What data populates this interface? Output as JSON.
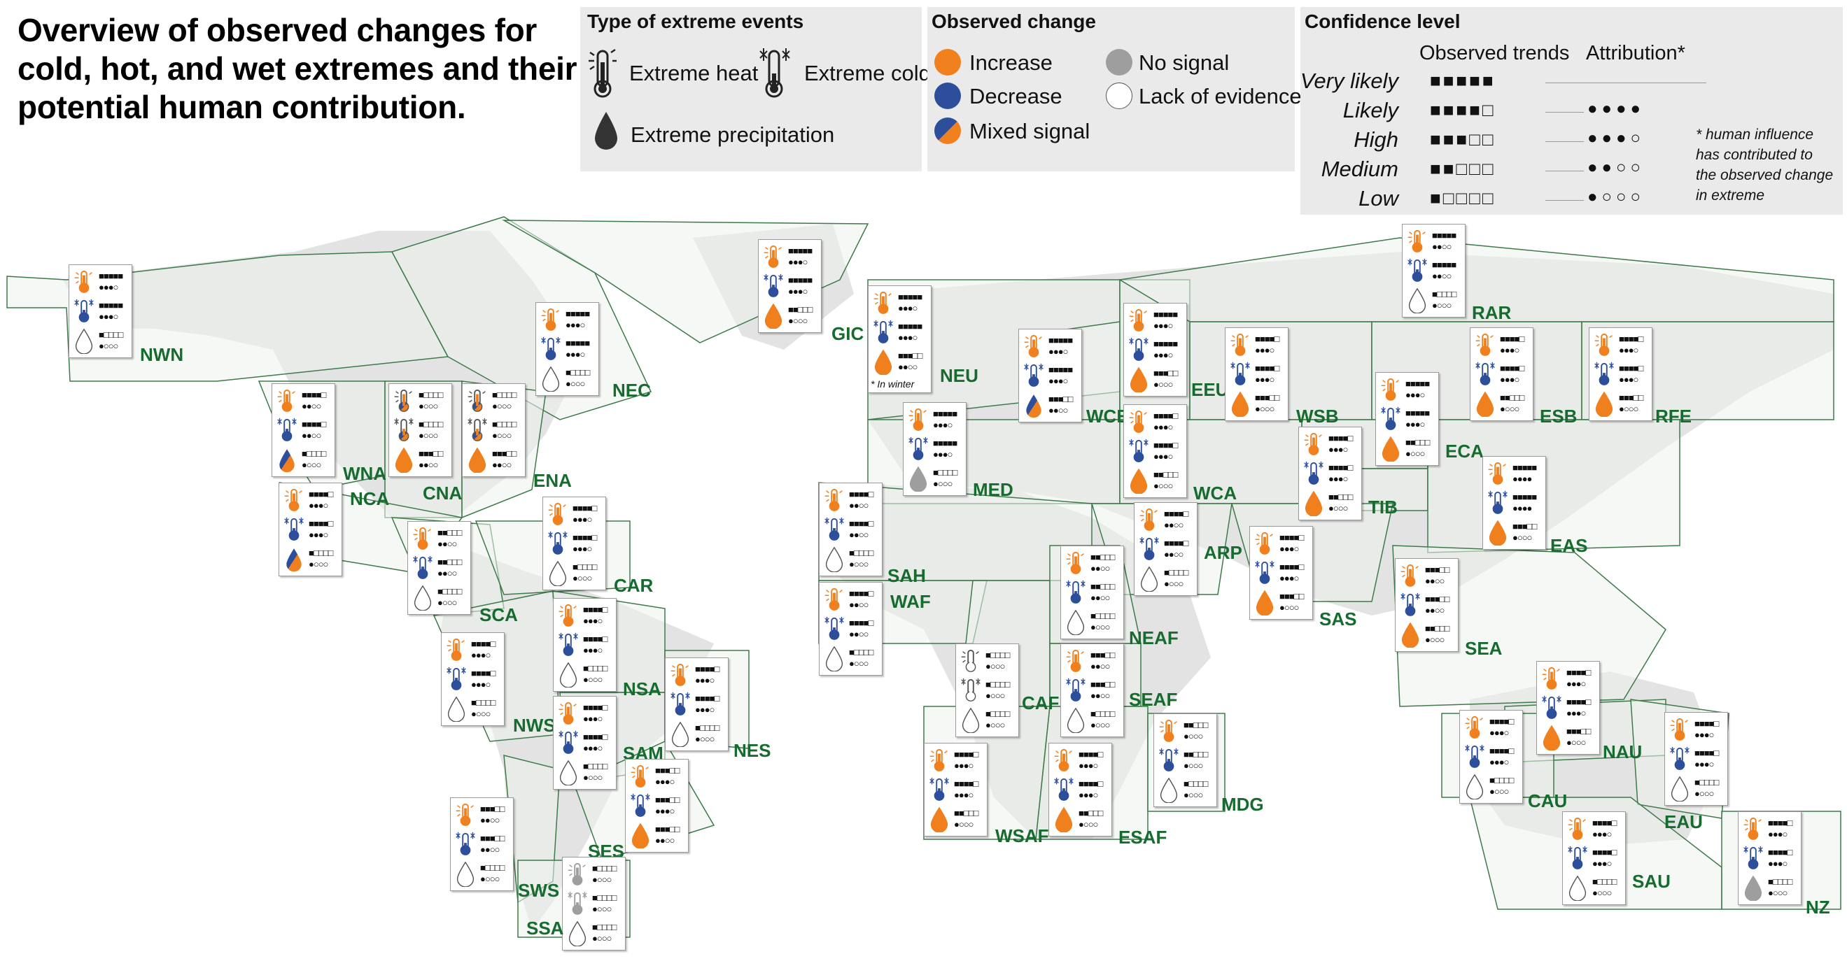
{
  "title": "Overview of observed changes for cold, hot, and wet extremes and their potential human contribution.",
  "legend": {
    "events": {
      "header": "Type of extreme events",
      "heat": "Extreme heat",
      "cold": "Extreme cold",
      "precip": "Extreme precipitation"
    },
    "change": {
      "header": "Observed change",
      "increase": "Increase",
      "decrease": "Decrease",
      "mixed": "Mixed signal",
      "nosignal": "No signal",
      "lack": "Lack of evidence"
    },
    "confidence": {
      "header": "Confidence level",
      "trends": "Observed trends",
      "attribution": "Attribution*",
      "levels": [
        "Very likely",
        "Likely",
        "High",
        "Medium",
        "Low"
      ],
      "trend_squares": [
        "■■■■■",
        "■■■■□",
        "■■■□□",
        "■■□□□",
        "■□□□□"
      ],
      "attr_dots": [
        "",
        "●●●●",
        "●●●○",
        "●●○○",
        "●○○○"
      ],
      "note": "* human influence has contributed to the observed change in extreme"
    }
  },
  "colors": {
    "increase": "#f07f1e",
    "decrease": "#2c4e9b",
    "nosignal": "#9e9e9e",
    "lack": "#ffffff",
    "land": "#eef2ec",
    "border": "#3d7a4a",
    "label": "#166b2f"
  },
  "winter_note": "* In winter",
  "regions": [
    {
      "code": "NWN",
      "heat": "increase",
      "heat_t": "■■■■■",
      "heat_a": "●●●○",
      "cold": "decrease",
      "cold_t": "■■■■■",
      "cold_a": "●●●○",
      "prec": "lack",
      "prec_t": "■□□□□",
      "prec_a": "●○○○"
    },
    {
      "code": "NEC",
      "heat": "increase",
      "heat_t": "■■■■■",
      "heat_a": "●●●○",
      "cold": "decrease",
      "cold_t": "■■■■■",
      "cold_a": "●●●○",
      "prec": "lack",
      "prec_t": "■□□□□",
      "prec_a": "●○○○"
    },
    {
      "code": "GIC",
      "heat": "increase",
      "heat_t": "■■■■■",
      "heat_a": "●●●○",
      "cold": "decrease",
      "cold_t": "■■■■■",
      "cold_a": "●●●○",
      "prec": "increase",
      "prec_t": "■■□□□",
      "prec_a": "●○○○"
    },
    {
      "code": "WNA",
      "heat": "increase",
      "heat_t": "■■■■□",
      "heat_a": "●●○○",
      "cold": "decrease",
      "cold_t": "■■■■□",
      "cold_a": "●●○○",
      "prec": "mixed",
      "prec_t": "■□□□□",
      "prec_a": "●○○○"
    },
    {
      "code": "CNA",
      "heat": "mixed",
      "heat_t": "■□□□□",
      "heat_a": "●○○○",
      "cold": "mixed",
      "cold_t": "■□□□□",
      "cold_a": "●○○○",
      "prec": "increase",
      "prec_t": "■■■□□",
      "prec_a": "●●○○"
    },
    {
      "code": "ENA",
      "heat": "mixed",
      "heat_t": "■□□□□",
      "heat_a": "●○○○",
      "cold": "mixed",
      "cold_t": "■□□□□",
      "cold_a": "●○○○",
      "prec": "increase",
      "prec_t": "■■■□□",
      "prec_a": "●●○○"
    },
    {
      "code": "NCA",
      "heat": "increase",
      "heat_t": "■■■■□",
      "heat_a": "●●●○",
      "cold": "decrease",
      "cold_t": "■■■■□",
      "cold_a": "●●●○",
      "prec": "mixed",
      "prec_t": "■□□□□",
      "prec_a": "●○○○"
    },
    {
      "code": "SCA",
      "heat": "increase",
      "heat_t": "■■□□□",
      "heat_a": "●●○○",
      "cold": "decrease",
      "cold_t": "■■□□□",
      "cold_a": "●●○○",
      "prec": "lack",
      "prec_t": "■□□□□",
      "prec_a": "●○○○"
    },
    {
      "code": "CAR",
      "heat": "increase",
      "heat_t": "■■■■□",
      "heat_a": "●●●○",
      "cold": "decrease",
      "cold_t": "■■■■□",
      "cold_a": "●●●○",
      "prec": "lack",
      "prec_t": "■□□□□",
      "prec_a": "●○○○"
    },
    {
      "code": "NWS",
      "heat": "increase",
      "heat_t": "■■■■□",
      "heat_a": "●●●○",
      "cold": "decrease",
      "cold_t": "■■■■□",
      "cold_a": "●●●○",
      "prec": "lack",
      "prec_t": "■□□□□",
      "prec_a": "●○○○"
    },
    {
      "code": "NSA",
      "heat": "increase",
      "heat_t": "■■■■□",
      "heat_a": "●●●○",
      "cold": "decrease",
      "cold_t": "■■■■□",
      "cold_a": "●●●○",
      "prec": "lack",
      "prec_t": "■□□□□",
      "prec_a": "●○○○"
    },
    {
      "code": "SAM",
      "heat": "increase",
      "heat_t": "■■■■□",
      "heat_a": "●●●○",
      "cold": "decrease",
      "cold_t": "■■■■□",
      "cold_a": "●●●○",
      "prec": "lack",
      "prec_t": "■□□□□",
      "prec_a": "●○○○"
    },
    {
      "code": "NES",
      "heat": "increase",
      "heat_t": "■■■■□",
      "heat_a": "●●●○",
      "cold": "decrease",
      "cold_t": "■■■■□",
      "cold_a": "●●●○",
      "prec": "lack",
      "prec_t": "■□□□□",
      "prec_a": "●○○○"
    },
    {
      "code": "SES",
      "heat": "increase",
      "heat_t": "■■■□□",
      "heat_a": "●●●○",
      "cold": "decrease",
      "cold_t": "■■■□□",
      "cold_a": "●●●○",
      "prec": "increase",
      "prec_t": "■■■□□",
      "prec_a": "●●○○"
    },
    {
      "code": "SWS",
      "heat": "increase",
      "heat_t": "■■■□□",
      "heat_a": "●●○○",
      "cold": "decrease",
      "cold_t": "■■■□□",
      "cold_a": "●●○○",
      "prec": "lack",
      "prec_t": "■□□□□",
      "prec_a": "●○○○"
    },
    {
      "code": "SSA",
      "heat": "nosignal",
      "heat_t": "■□□□□",
      "heat_a": "●○○○",
      "cold": "nosignal",
      "cold_t": "■□□□□",
      "cold_a": "●○○○",
      "prec": "lack",
      "prec_t": "■□□□□",
      "prec_a": "●○○○"
    },
    {
      "code": "NEU",
      "heat": "increase",
      "heat_t": "■■■■■",
      "heat_a": "●●●○",
      "cold": "decrease",
      "cold_t": "■■■■■",
      "cold_a": "●●●○",
      "prec": "increase",
      "prec_t": "■■■□□",
      "prec_a": "●●○○",
      "winter": true
    },
    {
      "code": "WCE",
      "heat": "increase",
      "heat_t": "■■■■■",
      "heat_a": "●●●○",
      "cold": "decrease",
      "cold_t": "■■■■■",
      "cold_a": "●●●○",
      "prec": "mixed",
      "prec_t": "■■■□□",
      "prec_a": "●●○○"
    },
    {
      "code": "MED",
      "heat": "increase",
      "heat_t": "■■■■■",
      "heat_a": "●●●○",
      "cold": "decrease",
      "cold_t": "■■■■■",
      "cold_a": "●●●○",
      "prec": "nosignal",
      "prec_t": "■□□□□",
      "prec_a": "●○○○"
    },
    {
      "code": "EEU",
      "heat": "increase",
      "heat_t": "■■■■■",
      "heat_a": "●●●○",
      "cold": "decrease",
      "cold_t": "■■■■■",
      "cold_a": "●●●○",
      "prec": "increase",
      "prec_t": "■■■□□",
      "prec_a": "●○○○"
    },
    {
      "code": "WSB",
      "heat": "increase",
      "heat_t": "■■■■□",
      "heat_a": "●●●○",
      "cold": "decrease",
      "cold_t": "■■■■□",
      "cold_a": "●●●○",
      "prec": "increase",
      "prec_t": "■■■□□",
      "prec_a": "●○○○"
    },
    {
      "code": "ESB",
      "heat": "increase",
      "heat_t": "■■■■□",
      "heat_a": "●●●○",
      "cold": "decrease",
      "cold_t": "■■■■□",
      "cold_a": "●●●○",
      "prec": "increase",
      "prec_t": "■■□□□",
      "prec_a": "●○○○"
    },
    {
      "code": "RFE",
      "heat": "increase",
      "heat_t": "■■■■□",
      "heat_a": "●●●○",
      "cold": "decrease",
      "cold_t": "■■■■□",
      "cold_a": "●●●○",
      "prec": "increase",
      "prec_t": "■■■□□",
      "prec_a": "●○○○"
    },
    {
      "code": "RAR",
      "heat": "increase",
      "heat_t": "■■■■■",
      "heat_a": "●●○○",
      "cold": "decrease",
      "cold_t": "■■■■■",
      "cold_a": "●●○○",
      "prec": "lack",
      "prec_t": "■□□□□",
      "prec_a": "●○○○"
    },
    {
      "code": "WCA",
      "heat": "increase",
      "heat_t": "■■■■□",
      "heat_a": "●●●○",
      "cold": "decrease",
      "cold_t": "■■■■□",
      "cold_a": "●●●○",
      "prec": "increase",
      "prec_t": "■■□□□",
      "prec_a": "●○○○"
    },
    {
      "code": "ECA",
      "heat": "increase",
      "heat_t": "■■■■■",
      "heat_a": "●●●○",
      "cold": "decrease",
      "cold_t": "■■■■■",
      "cold_a": "●●●○",
      "prec": "increase",
      "prec_t": "■■□□□",
      "prec_a": "●○○○"
    },
    {
      "code": "TIB",
      "heat": "increase",
      "heat_t": "■■■■□",
      "heat_a": "●●●○",
      "cold": "decrease",
      "cold_t": "■■■■□",
      "cold_a": "●●●○",
      "prec": "increase",
      "prec_t": "■■□□□",
      "prec_a": "●○○○"
    },
    {
      "code": "EAS",
      "heat": "increase",
      "heat_t": "■■■■■",
      "heat_a": "●●●●",
      "cold": "decrease",
      "cold_t": "■■■■■",
      "cold_a": "●●●●",
      "prec": "increase",
      "prec_t": "■■■□□",
      "prec_a": "●○○○"
    },
    {
      "code": "ARP",
      "heat": "increase",
      "heat_t": "■■■■□",
      "heat_a": "●●○○",
      "cold": "decrease",
      "cold_t": "■■■■□",
      "cold_a": "●●○○",
      "prec": "lack",
      "prec_t": "■□□□□",
      "prec_a": "●○○○"
    },
    {
      "code": "SAS",
      "heat": "increase",
      "heat_t": "■■■■□",
      "heat_a": "●●●○",
      "cold": "decrease",
      "cold_t": "■■■■□",
      "cold_a": "●●●○",
      "prec": "increase",
      "prec_t": "■■■□□",
      "prec_a": "●○○○"
    },
    {
      "code": "SEA",
      "heat": "increase",
      "heat_t": "■■■□□",
      "heat_a": "●●○○",
      "cold": "decrease",
      "cold_t": "■■■□□",
      "cold_a": "●●○○",
      "prec": "increase",
      "prec_t": "■■□□□",
      "prec_a": "●○○○"
    },
    {
      "code": "SAH",
      "heat": "increase",
      "heat_t": "■■■■□",
      "heat_a": "●●○○",
      "cold": "decrease",
      "cold_t": "■■■■□",
      "cold_a": "●●○○",
      "prec": "lack",
      "prec_t": "■□□□□",
      "prec_a": "●○○○"
    },
    {
      "code": "WAF",
      "heat": "increase",
      "heat_t": "■■■■□",
      "heat_a": "●●○○",
      "cold": "decrease",
      "cold_t": "■■■■□",
      "cold_a": "●●○○",
      "prec": "lack",
      "prec_t": "■□□□□",
      "prec_a": "●○○○"
    },
    {
      "code": "CAF",
      "heat": "lack",
      "heat_t": "■□□□□",
      "heat_a": "●○○○",
      "cold": "lack",
      "cold_t": "■□□□□",
      "cold_a": "●○○○",
      "prec": "lack",
      "prec_t": "■□□□□",
      "prec_a": "●○○○"
    },
    {
      "code": "NEAF",
      "heat": "increase",
      "heat_t": "■■□□□",
      "heat_a": "●●○○",
      "cold": "decrease",
      "cold_t": "■■□□□",
      "cold_a": "●●○○",
      "prec": "lack",
      "prec_t": "■□□□□",
      "prec_a": "●○○○"
    },
    {
      "code": "SEAF",
      "heat": "increase",
      "heat_t": "■■■□□",
      "heat_a": "●●○○",
      "cold": "decrease",
      "cold_t": "■■■□□",
      "cold_a": "●●○○",
      "prec": "lack",
      "prec_t": "■□□□□",
      "prec_a": "●○○○"
    },
    {
      "code": "WSAF",
      "heat": "increase",
      "heat_t": "■■■■□",
      "heat_a": "●●●○",
      "cold": "decrease",
      "cold_t": "■■■■□",
      "cold_a": "●●●○",
      "prec": "increase",
      "prec_t": "■■□□□",
      "prec_a": "●○○○"
    },
    {
      "code": "ESAF",
      "heat": "increase",
      "heat_t": "■■■■□",
      "heat_a": "●●●○",
      "cold": "decrease",
      "cold_t": "■■■■□",
      "cold_a": "●●●○",
      "prec": "increase",
      "prec_t": "■■□□□",
      "prec_a": "●○○○"
    },
    {
      "code": "MDG",
      "heat": "increase",
      "heat_t": "■■□□□",
      "heat_a": "●○○○",
      "cold": "decrease",
      "cold_t": "■■□□□",
      "cold_a": "●○○○",
      "prec": "lack",
      "prec_t": "■□□□□",
      "prec_a": "●○○○"
    },
    {
      "code": "NAU",
      "heat": "increase",
      "heat_t": "■■■■□",
      "heat_a": "●●●○",
      "cold": "decrease",
      "cold_t": "■■■■□",
      "cold_a": "●●●○",
      "prec": "increase",
      "prec_t": "■■■□□",
      "prec_a": "●○○○"
    },
    {
      "code": "CAU",
      "heat": "increase",
      "heat_t": "■■■■□",
      "heat_a": "●●●○",
      "cold": "decrease",
      "cold_t": "■■■■□",
      "cold_a": "●●●○",
      "prec": "lack",
      "prec_t": "■□□□□",
      "prec_a": "●○○○"
    },
    {
      "code": "EAU",
      "heat": "increase",
      "heat_t": "■■■■□",
      "heat_a": "●●●○",
      "cold": "decrease",
      "cold_t": "■■■■□",
      "cold_a": "●●●○",
      "prec": "lack",
      "prec_t": "■□□□□",
      "prec_a": "●○○○"
    },
    {
      "code": "SAU",
      "heat": "increase",
      "heat_t": "■■■■□",
      "heat_a": "●●●○",
      "cold": "decrease",
      "cold_t": "■■■■□",
      "cold_a": "●●●○",
      "prec": "lack",
      "prec_t": "■□□□□",
      "prec_a": "●○○○"
    },
    {
      "code": "NZ",
      "heat": "increase",
      "heat_t": "■■■■□",
      "heat_a": "●●●○",
      "cold": "decrease",
      "cold_t": "■■■■□",
      "cold_a": "●●●○",
      "prec": "nosignal",
      "prec_t": "■□□□□",
      "prec_a": "●○○○"
    }
  ]
}
